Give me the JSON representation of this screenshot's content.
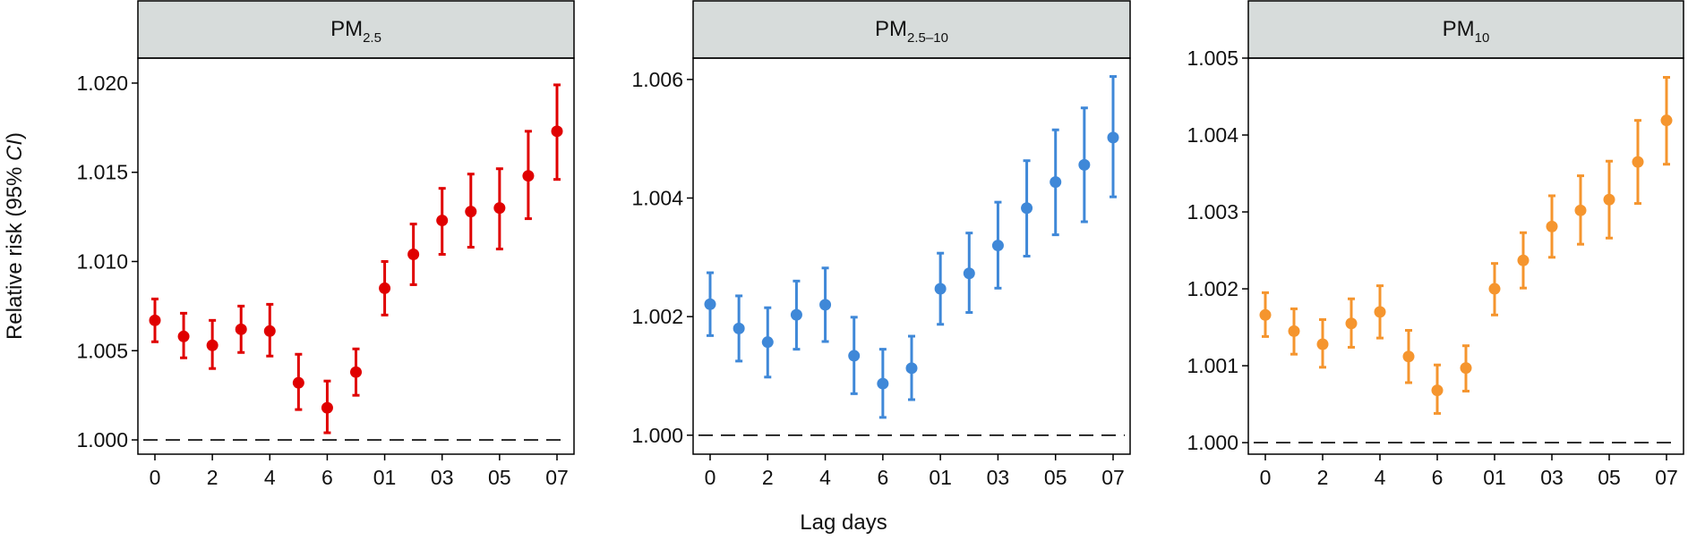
{
  "y_axis_label": "Relative risk (95% CI)",
  "y_axis_label_parts": [
    "Relative risk (95% ",
    "CI",
    ")"
  ],
  "x_axis_label": "Lag days",
  "reference_line": 1.0,
  "chart_data": [
    {
      "type": "scatter",
      "panel": "PM2.5",
      "panel_title_main": "PM",
      "panel_title_sub": "2.5",
      "color": "#e00000",
      "categories": [
        "0",
        "1",
        "2",
        "3",
        "4",
        "5",
        "6",
        "7",
        "01",
        "02",
        "03",
        "04",
        "05",
        "06",
        "07"
      ],
      "x_tick_labels": [
        "0",
        "2",
        "4",
        "6",
        "01",
        "03",
        "05",
        "07"
      ],
      "y_ticks": [
        "1.000",
        "1.005",
        "1.010",
        "1.015",
        "1.020"
      ],
      "ylim": [
        0.9992,
        1.0214
      ],
      "values": [
        1.0067,
        1.0058,
        1.0053,
        1.0062,
        1.0061,
        1.0032,
        1.0018,
        1.0038,
        1.0085,
        1.0104,
        1.0123,
        1.0128,
        1.013,
        1.0148,
        1.0173
      ],
      "lower": [
        1.0055,
        1.0046,
        1.004,
        1.0049,
        1.0047,
        1.0017,
        1.0004,
        1.0025,
        1.007,
        1.0087,
        1.0104,
        1.0108,
        1.0107,
        1.0124,
        1.0146
      ],
      "upper": [
        1.0079,
        1.0071,
        1.0067,
        1.0075,
        1.0076,
        1.0048,
        1.0033,
        1.0051,
        1.01,
        1.0121,
        1.0141,
        1.0149,
        1.0152,
        1.0173,
        1.0199
      ]
    },
    {
      "type": "scatter",
      "panel": "PM2.5-10",
      "panel_title_main": "PM",
      "panel_title_sub": "2.5–10",
      "color": "#3f88d8",
      "categories": [
        "0",
        "1",
        "2",
        "3",
        "4",
        "5",
        "6",
        "7",
        "01",
        "02",
        "03",
        "04",
        "05",
        "06",
        "07"
      ],
      "x_tick_labels": [
        "0",
        "2",
        "4",
        "6",
        "01",
        "03",
        "05",
        "07"
      ],
      "y_ticks": [
        "1.000",
        "1.002",
        "1.004",
        "1.006"
      ],
      "ylim": [
        0.99968,
        1.00636
      ],
      "values": [
        1.00221,
        1.0018,
        1.00157,
        1.00203,
        1.0022,
        1.00134,
        1.00087,
        1.00113,
        1.00247,
        1.00273,
        1.0032,
        1.00383,
        1.00427,
        1.00456,
        1.00502
      ],
      "lower": [
        1.00168,
        1.00125,
        1.00098,
        1.00145,
        1.00158,
        1.0007,
        1.0003,
        1.0006,
        1.00187,
        1.00207,
        1.00248,
        1.00302,
        1.00338,
        1.0036,
        1.00402
      ],
      "upper": [
        1.00274,
        1.00235,
        1.00215,
        1.0026,
        1.00282,
        1.00199,
        1.00145,
        1.00167,
        1.00307,
        1.00341,
        1.00393,
        1.00463,
        1.00515,
        1.00552,
        1.00605
      ]
    },
    {
      "type": "scatter",
      "panel": "PM10",
      "panel_title_main": "PM",
      "panel_title_sub": "10",
      "color": "#f5952e",
      "categories": [
        "0",
        "1",
        "2",
        "3",
        "4",
        "5",
        "6",
        "7",
        "01",
        "02",
        "03",
        "04",
        "05",
        "06",
        "07"
      ],
      "x_tick_labels": [
        "0",
        "2",
        "4",
        "6",
        "01",
        "03",
        "05",
        "07"
      ],
      "y_ticks": [
        "1.000",
        "1.001",
        "1.002",
        "1.003",
        "1.004",
        "1.005"
      ],
      "ylim": [
        0.99985,
        1.005
      ],
      "values": [
        1.00166,
        1.00145,
        1.00128,
        1.00155,
        1.0017,
        1.00112,
        1.00068,
        1.00097,
        1.002,
        1.00237,
        1.00281,
        1.00302,
        1.00316,
        1.00365,
        1.00419
      ],
      "lower": [
        1.00138,
        1.00115,
        1.00098,
        1.00124,
        1.00136,
        1.00078,
        1.00038,
        1.00067,
        1.00166,
        1.00201,
        1.00241,
        1.00258,
        1.00266,
        1.00311,
        1.00362
      ],
      "upper": [
        1.00195,
        1.00174,
        1.0016,
        1.00187,
        1.00204,
        1.00146,
        1.00101,
        1.00126,
        1.00233,
        1.00273,
        1.00321,
        1.00347,
        1.00366,
        1.00419,
        1.00475
      ]
    }
  ]
}
